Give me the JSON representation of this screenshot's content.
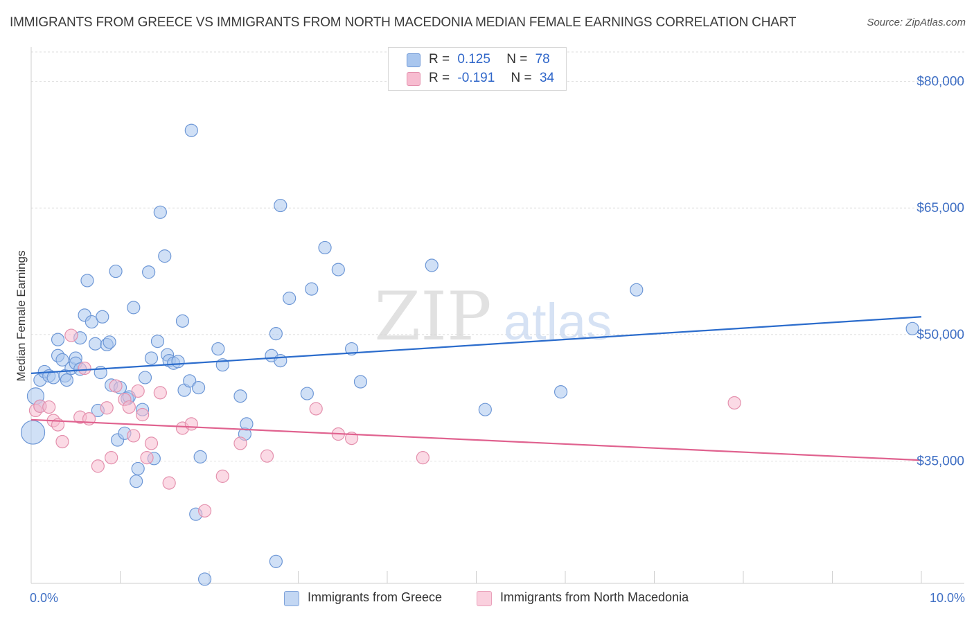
{
  "chart_data": {
    "type": "scatter",
    "title": "IMMIGRANTS FROM GREECE VS IMMIGRANTS FROM NORTH MACEDONIA MEDIAN FEMALE EARNINGS CORRELATION CHART",
    "source": "Source: ZipAtlas.com",
    "xlabel": "",
    "ylabel": "Median Female Earnings",
    "xlim": [
      0,
      10
    ],
    "ylim": [
      20500,
      83500
    ],
    "x_tick_labels": [
      "0.0%",
      "10.0%"
    ],
    "y_ticks": [
      35000,
      50000,
      65000,
      80000
    ],
    "y_tick_labels": [
      "$35,000",
      "$50,000",
      "$65,000",
      "$80,000"
    ],
    "grid": true,
    "watermark": "ZIPatlas",
    "legend": [
      {
        "r_label": "R =",
        "r_value": "0.125",
        "n_label": "N =",
        "n_value": "78"
      },
      {
        "r_label": "R =",
        "r_value": "-0.191",
        "n_label": "N =",
        "n_value": "34"
      }
    ],
    "series": [
      {
        "name": "Immigrants from Greece",
        "color": "#a9c6ee",
        "edge": "#6d97d6",
        "line_color": "#2b6ccc",
        "trend": [
          [
            0,
            45400
          ],
          [
            10,
            52100
          ]
        ],
        "points": [
          [
            0.02,
            38400
          ],
          [
            0.05,
            42700
          ],
          [
            0.1,
            41500
          ],
          [
            0.1,
            44600
          ],
          [
            0.15,
            45600
          ],
          [
            0.2,
            45100
          ],
          [
            0.25,
            44900
          ],
          [
            0.3,
            47500
          ],
          [
            0.3,
            49400
          ],
          [
            0.35,
            47000
          ],
          [
            0.38,
            45100
          ],
          [
            0.4,
            44600
          ],
          [
            0.45,
            46000
          ],
          [
            0.5,
            47200
          ],
          [
            0.5,
            46600
          ],
          [
            0.55,
            49600
          ],
          [
            0.55,
            45900
          ],
          [
            0.6,
            52300
          ],
          [
            0.63,
            56400
          ],
          [
            0.68,
            51500
          ],
          [
            0.72,
            48900
          ],
          [
            0.75,
            41000
          ],
          [
            0.78,
            45500
          ],
          [
            0.8,
            52100
          ],
          [
            0.85,
            48800
          ],
          [
            0.88,
            49100
          ],
          [
            0.9,
            44000
          ],
          [
            0.95,
            57500
          ],
          [
            0.97,
            37500
          ],
          [
            1.0,
            43700
          ],
          [
            1.05,
            38300
          ],
          [
            1.08,
            42400
          ],
          [
            1.1,
            42600
          ],
          [
            1.15,
            53200
          ],
          [
            1.18,
            32600
          ],
          [
            1.2,
            34100
          ],
          [
            1.25,
            41100
          ],
          [
            1.28,
            44900
          ],
          [
            1.32,
            57400
          ],
          [
            1.35,
            47200
          ],
          [
            1.38,
            35300
          ],
          [
            1.42,
            49200
          ],
          [
            1.45,
            64500
          ],
          [
            1.5,
            59300
          ],
          [
            1.53,
            47600
          ],
          [
            1.55,
            46900
          ],
          [
            1.6,
            46600
          ],
          [
            1.65,
            46800
          ],
          [
            1.7,
            51600
          ],
          [
            1.72,
            43400
          ],
          [
            1.78,
            44500
          ],
          [
            1.8,
            74200
          ],
          [
            1.85,
            28700
          ],
          [
            1.88,
            43700
          ],
          [
            1.9,
            35500
          ],
          [
            1.95,
            21000
          ],
          [
            2.1,
            48300
          ],
          [
            2.15,
            46400
          ],
          [
            2.35,
            42700
          ],
          [
            2.4,
            38200
          ],
          [
            2.42,
            39400
          ],
          [
            2.7,
            47500
          ],
          [
            2.8,
            65300
          ],
          [
            2.75,
            23100
          ],
          [
            2.75,
            50100
          ],
          [
            2.8,
            46900
          ],
          [
            2.9,
            54300
          ],
          [
            3.1,
            43000
          ],
          [
            3.15,
            55400
          ],
          [
            3.3,
            60300
          ],
          [
            3.45,
            57700
          ],
          [
            3.6,
            48300
          ],
          [
            3.7,
            44400
          ],
          [
            4.5,
            58200
          ],
          [
            5.1,
            41100
          ],
          [
            5.95,
            43200
          ],
          [
            6.8,
            55300
          ],
          [
            9.9,
            50700
          ]
        ],
        "large_point_indices": [
          0,
          1
        ]
      },
      {
        "name": "Immigrants from North Macedonia",
        "color": "#f7bcd0",
        "edge": "#e490ad",
        "line_color": "#e0628f",
        "trend": [
          [
            0,
            39900
          ],
          [
            10,
            35100
          ]
        ],
        "points": [
          [
            0.05,
            41000
          ],
          [
            0.1,
            41500
          ],
          [
            0.2,
            41400
          ],
          [
            0.25,
            39800
          ],
          [
            0.3,
            39300
          ],
          [
            0.35,
            37300
          ],
          [
            0.45,
            49900
          ],
          [
            0.55,
            40200
          ],
          [
            0.6,
            46000
          ],
          [
            0.65,
            40000
          ],
          [
            0.75,
            34400
          ],
          [
            0.85,
            41300
          ],
          [
            0.9,
            35400
          ],
          [
            0.95,
            43900
          ],
          [
            1.05,
            42300
          ],
          [
            1.1,
            41400
          ],
          [
            1.15,
            38000
          ],
          [
            1.2,
            43300
          ],
          [
            1.25,
            40500
          ],
          [
            1.3,
            35400
          ],
          [
            1.35,
            37100
          ],
          [
            1.45,
            43100
          ],
          [
            1.55,
            32400
          ],
          [
            1.7,
            38900
          ],
          [
            1.8,
            39400
          ],
          [
            1.95,
            29100
          ],
          [
            2.15,
            33200
          ],
          [
            2.35,
            37100
          ],
          [
            2.65,
            35600
          ],
          [
            3.2,
            41200
          ],
          [
            3.45,
            38200
          ],
          [
            3.6,
            37700
          ],
          [
            4.4,
            35400
          ],
          [
            7.9,
            41900
          ]
        ]
      }
    ]
  },
  "bottom_legend": [
    "Immigrants from Greece",
    "Immigrants from North Macedonia"
  ]
}
